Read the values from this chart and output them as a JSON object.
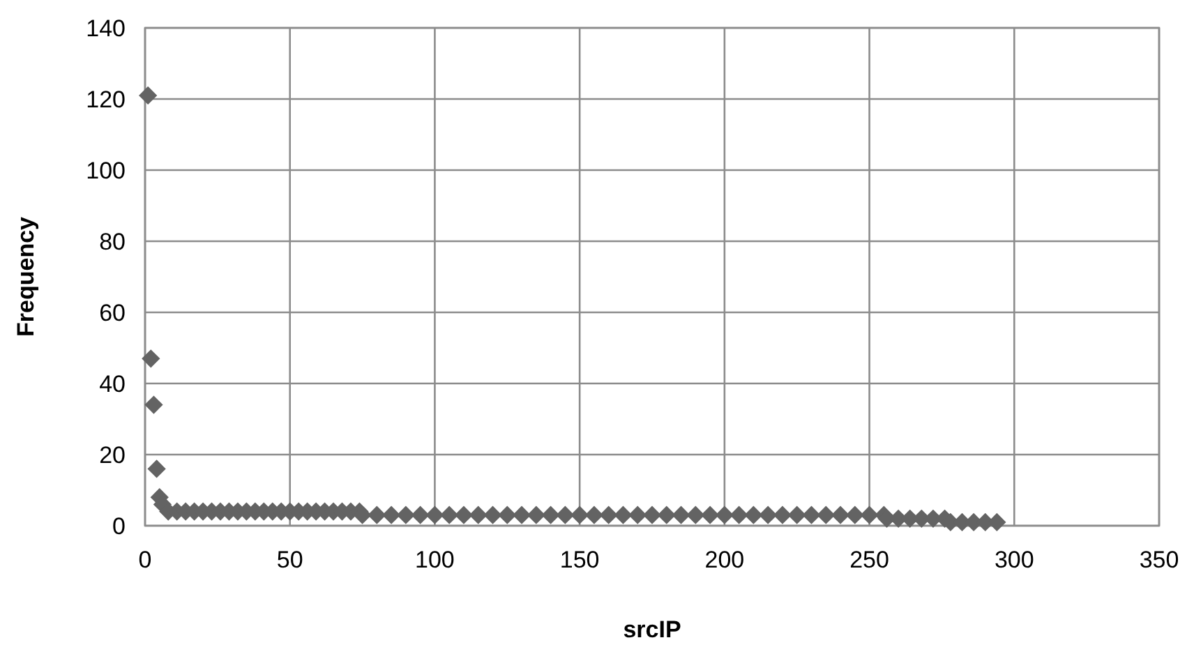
{
  "chart_data": {
    "type": "scatter",
    "xlabel": "srcIP",
    "ylabel": "Frequency",
    "xlim": [
      0,
      350
    ],
    "ylim": [
      0,
      140
    ],
    "xticks": [
      0,
      50,
      100,
      150,
      200,
      250,
      300,
      350
    ],
    "yticks": [
      0,
      20,
      40,
      60,
      80,
      100,
      120,
      140
    ],
    "grid": true,
    "marker": "diamond",
    "series": [
      {
        "color": "#636363",
        "x": [
          1,
          2,
          3,
          4,
          5,
          6,
          8,
          11,
          14,
          17,
          20,
          23,
          26,
          29,
          32,
          35,
          38,
          41,
          44,
          47,
          50,
          53,
          56,
          59,
          62,
          65,
          68,
          71,
          74,
          75,
          80,
          85,
          90,
          95,
          100,
          105,
          110,
          115,
          120,
          125,
          130,
          135,
          140,
          145,
          150,
          155,
          160,
          165,
          170,
          175,
          180,
          185,
          190,
          195,
          200,
          205,
          210,
          215,
          220,
          225,
          230,
          235,
          240,
          245,
          250,
          255,
          256,
          260,
          264,
          268,
          272,
          276,
          278,
          282,
          286,
          290,
          294
        ],
        "values": [
          121,
          47,
          34,
          16,
          8,
          6,
          4,
          4,
          4,
          4,
          4,
          4,
          4,
          4,
          4,
          4,
          4,
          4,
          4,
          4,
          4,
          4,
          4,
          4,
          4,
          4,
          4,
          4,
          4,
          3,
          3,
          3,
          3,
          3,
          3,
          3,
          3,
          3,
          3,
          3,
          3,
          3,
          3,
          3,
          3,
          3,
          3,
          3,
          3,
          3,
          3,
          3,
          3,
          3,
          3,
          3,
          3,
          3,
          3,
          3,
          3,
          3,
          3,
          3,
          3,
          3,
          2,
          2,
          2,
          2,
          2,
          2,
          1,
          1,
          1,
          1,
          1
        ]
      }
    ]
  }
}
